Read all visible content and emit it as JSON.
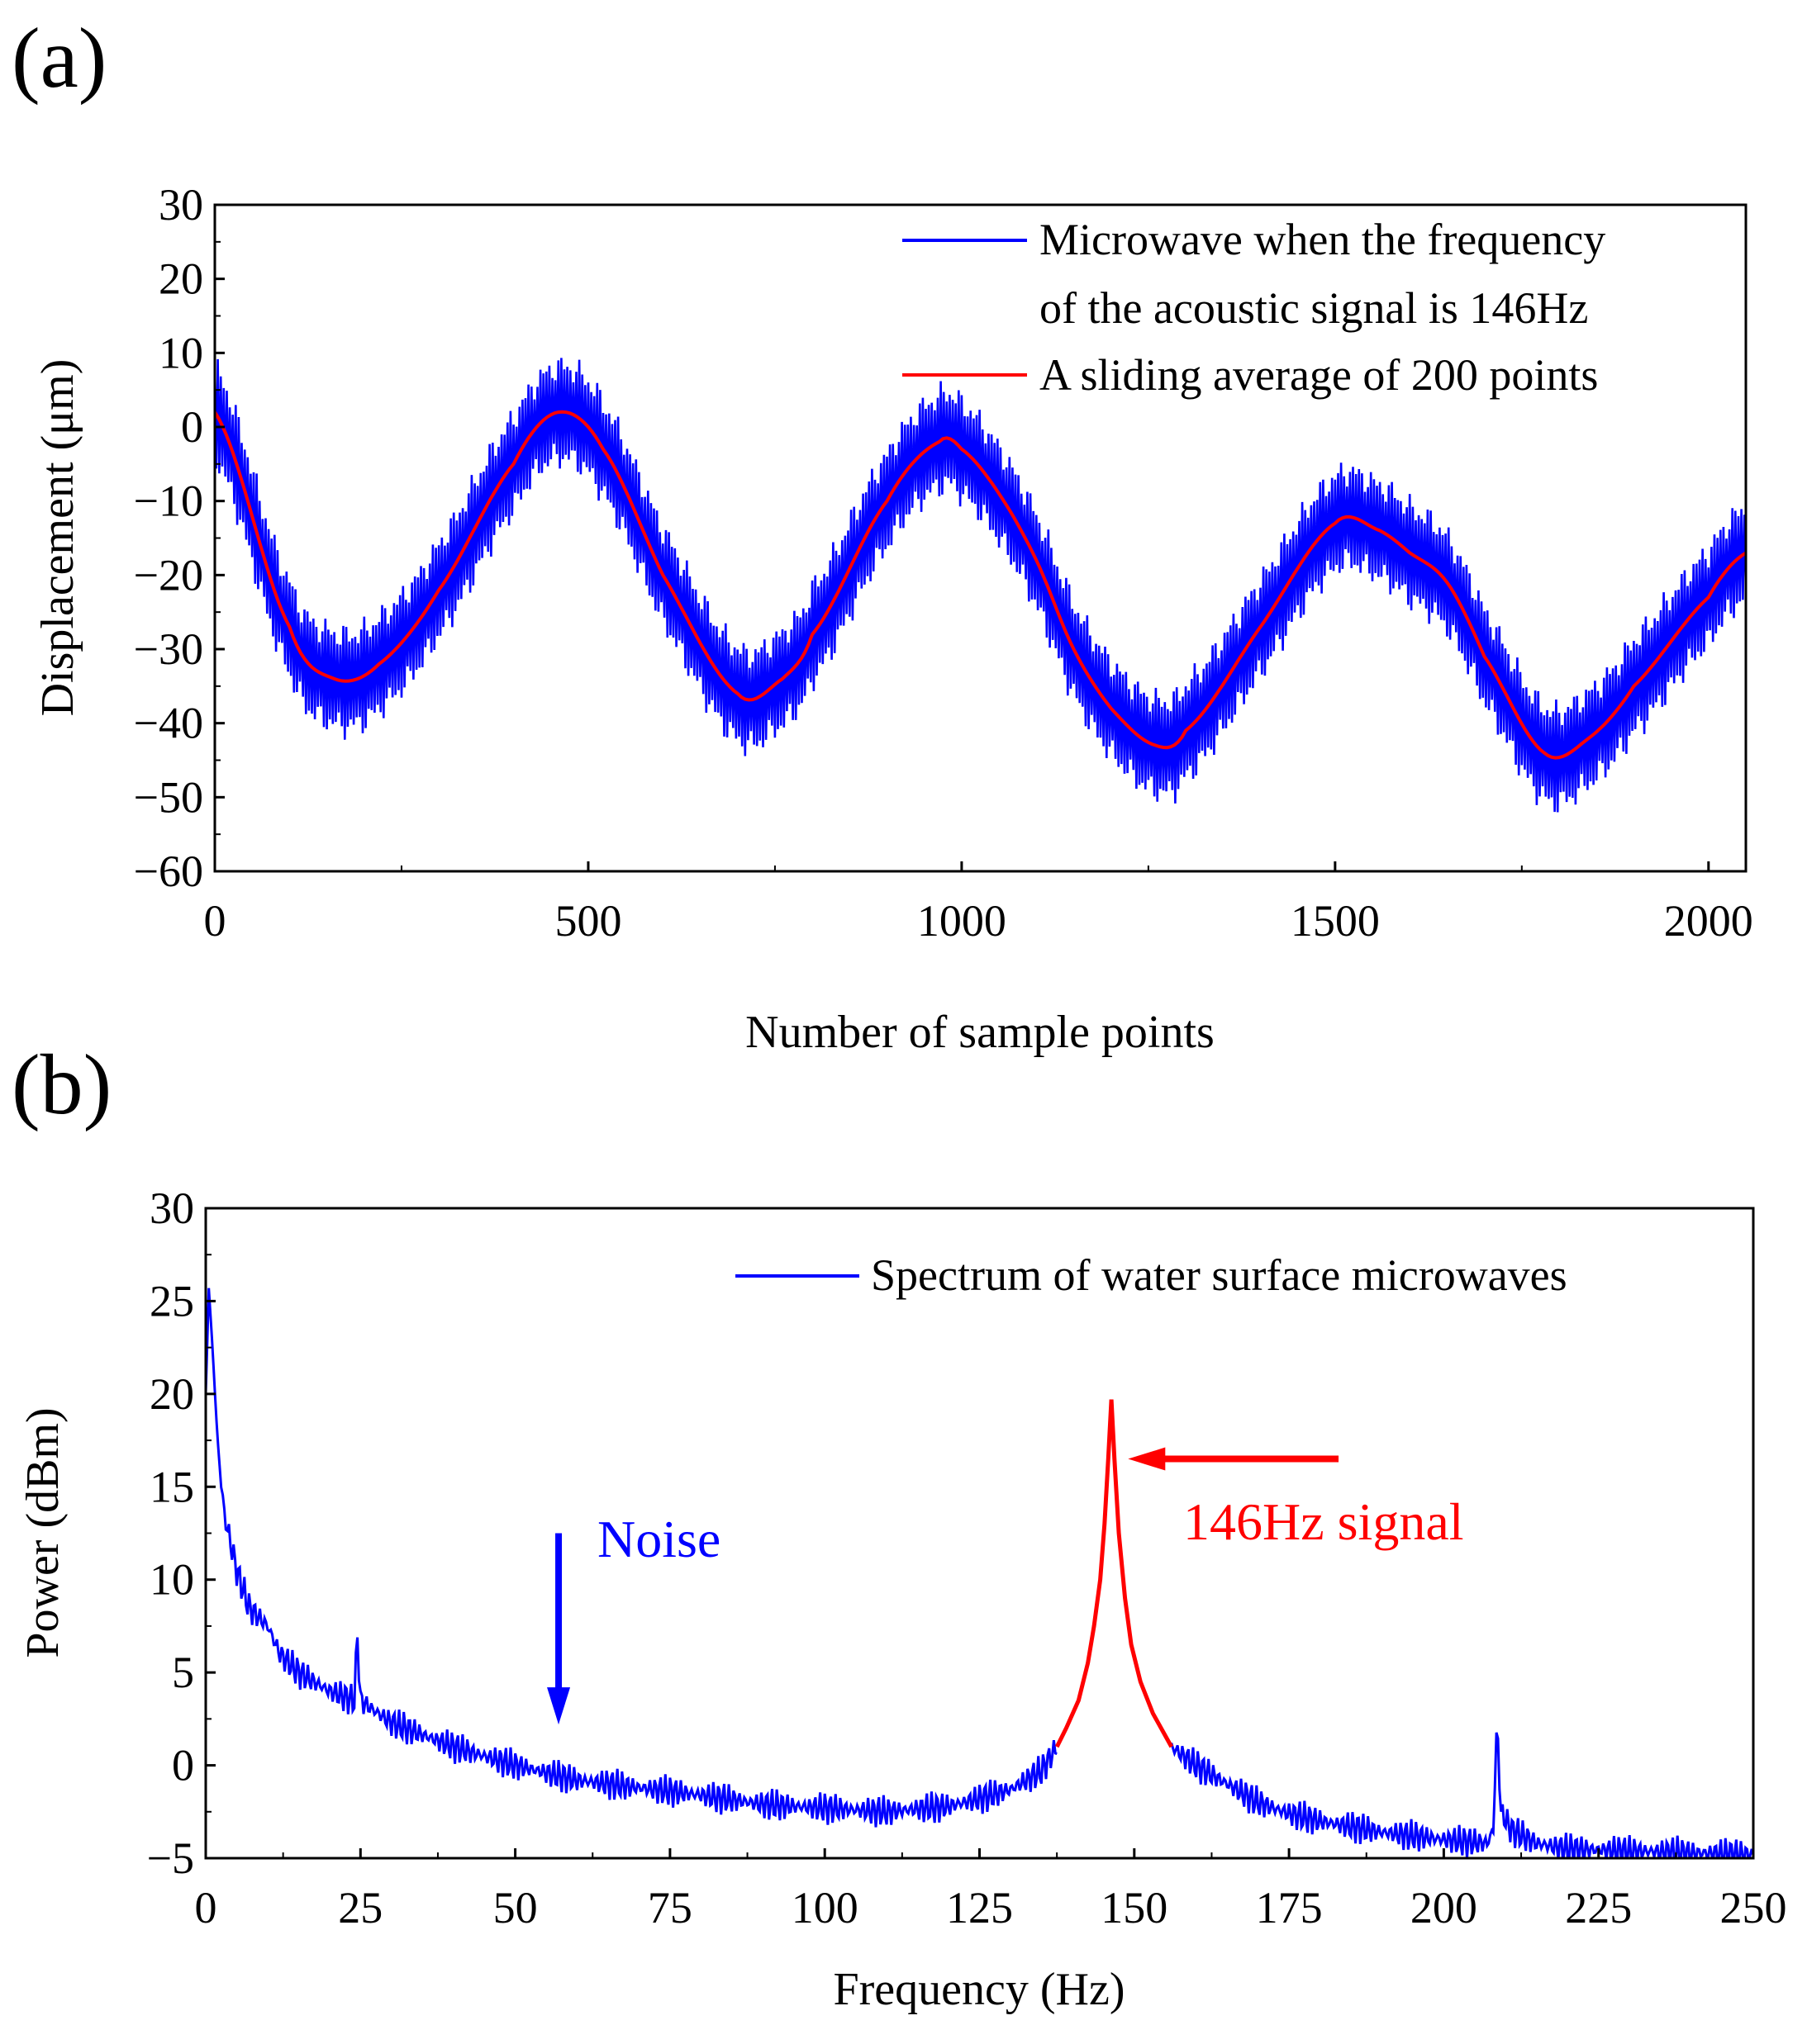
{
  "panel_a": {
    "label": "(a)",
    "chart_data": {
      "type": "line",
      "xlabel": "Number of sample points",
      "ylabel": "Displacement (μm)",
      "xlim": [
        0,
        2050
      ],
      "ylim": [
        -60,
        30
      ],
      "x_ticks": [
        0,
        500,
        1000,
        1500,
        2000
      ],
      "x_tick_labels": [
        "0",
        "500",
        "1000",
        "1500",
        "2000"
      ],
      "y_ticks": [
        -60,
        -50,
        -40,
        -30,
        -20,
        -10,
        0,
        10,
        20,
        30
      ],
      "y_tick_labels": [
        "−60",
        "−50",
        "−40",
        "−30",
        "−20",
        "−10",
        "0",
        "10",
        "20",
        "30"
      ],
      "grid": false,
      "legend_position": "top-right",
      "legend": {
        "series_1_line1": "Microwave when the frequency",
        "series_1_line2": "of the acoustic signal is 146Hz",
        "series_2": "A sliding average of 200 points"
      },
      "series": [
        {
          "name": "Microwave when the frequency of the acoustic signal is 146Hz",
          "color": "#0000ff",
          "band_half_width": 8,
          "x": [
            0,
            100,
            160,
            220,
            300,
            400,
            460,
            520,
            600,
            700,
            760,
            800,
            900,
            970,
            1000,
            1050,
            1100,
            1150,
            1200,
            1260,
            1300,
            1400,
            1500,
            1560,
            1600,
            1650,
            1700,
            1780,
            1840,
            1900,
            2000,
            2050
          ],
          "y": [
            2,
            -27,
            -34,
            -32,
            -22,
            -5,
            2,
            -3,
            -20,
            -36,
            -34,
            -28,
            -10,
            -2,
            -3,
            -9,
            -18,
            -30,
            -38,
            -43,
            -41,
            -27,
            -13,
            -14,
            -17,
            -21,
            -31,
            -44,
            -42,
            -35,
            -23,
            -17
          ]
        },
        {
          "name": "A sliding average of 200 points",
          "color": "#ff0000",
          "x": [
            0,
            100,
            160,
            220,
            300,
            400,
            460,
            520,
            600,
            700,
            760,
            800,
            900,
            970,
            1000,
            1050,
            1100,
            1150,
            1200,
            1260,
            1300,
            1400,
            1500,
            1560,
            1600,
            1650,
            1700,
            1780,
            1840,
            1900,
            2000,
            2050
          ],
          "y": [
            2,
            -27,
            -34,
            -32,
            -22,
            -5,
            2,
            -3,
            -20,
            -36,
            -34,
            -28,
            -10,
            -2,
            -3,
            -9,
            -18,
            -30,
            -38,
            -43,
            -41,
            -27,
            -13,
            -14,
            -17,
            -21,
            -31,
            -44,
            -42,
            -35,
            -23,
            -17
          ]
        }
      ]
    }
  },
  "panel_b": {
    "label": "(b)",
    "chart_data": {
      "type": "line",
      "xlabel": "Frequency (Hz)",
      "ylabel": "Power (dBm)",
      "xlim": [
        0,
        250
      ],
      "ylim": [
        -5,
        30
      ],
      "x_ticks": [
        0,
        25,
        50,
        75,
        100,
        125,
        150,
        175,
        200,
        225,
        250
      ],
      "x_tick_labels": [
        "0",
        "25",
        "50",
        "75",
        "100",
        "125",
        "150",
        "175",
        "200",
        "225",
        "250"
      ],
      "y_ticks": [
        -5,
        0,
        5,
        10,
        15,
        20,
        25,
        30
      ],
      "y_tick_labels": [
        "−5",
        "0",
        "5",
        "10",
        "15",
        "20",
        "25",
        "30"
      ],
      "grid": false,
      "legend_position": "top-right",
      "legend": {
        "series_1": "Spectrum of water surface microwaves"
      },
      "series": [
        {
          "name": "Spectrum of water surface microwaves",
          "color": "#0000ff",
          "x": [
            0,
            0.5,
            1,
            2,
            3,
            5,
            7,
            10,
            12,
            15,
            20,
            24,
            24.5,
            25,
            27,
            30,
            40,
            50,
            60,
            70,
            80,
            90,
            100,
            110,
            120,
            125,
            130,
            135,
            137.5,
            156,
            160,
            165,
            170,
            175,
            180,
            190,
            200,
            207,
            208,
            208.6,
            209.2,
            211,
            215,
            220,
            230,
            240,
            250
          ],
          "y": [
            20,
            25.7,
            23,
            17,
            13.5,
            10.5,
            8.5,
            7.5,
            6,
            5,
            4,
            3.5,
            7,
            3.5,
            3,
            2.3,
            1,
            0,
            -0.8,
            -1.2,
            -1.6,
            -2.1,
            -2.3,
            -2.5,
            -2.2,
            -1.8,
            -1.3,
            -0.3,
            1,
            1,
            0,
            -1,
            -2,
            -2.6,
            -3,
            -3.6,
            -4,
            -4.2,
            -3.5,
            2.5,
            -2.5,
            -3.5,
            -4.2,
            -4.5,
            -4.6,
            -4.7,
            -4.8
          ]
        },
        {
          "name": "146Hz signal",
          "color": "#ff0000",
          "x": [
            137.5,
            139,
            141,
            142.5,
            143.5,
            144.5,
            145.2,
            145.8,
            146.3,
            146.8,
            147.5,
            148.5,
            149.5,
            151,
            153,
            156
          ],
          "y": [
            1,
            2,
            3.5,
            5.5,
            7.5,
            10,
            13,
            16.5,
            19.7,
            16.5,
            12.5,
            9,
            6.5,
            4.5,
            2.8,
            1
          ]
        }
      ],
      "annotations": {
        "noise_text": "Noise",
        "signal_text": "146Hz signal",
        "noise_arrow": {
          "x": 57,
          "y_from": 12.5,
          "y_to": 2.2
        },
        "signal_arrow": {
          "y": 16.5,
          "x_from": 183,
          "x_to": 149
        }
      }
    }
  }
}
